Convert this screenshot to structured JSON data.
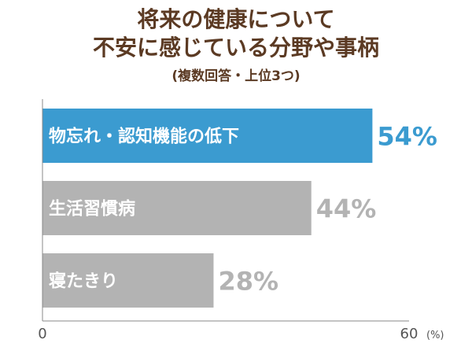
{
  "title_lines": [
    "将来の健康について",
    "不安に感じている分野や事柄"
  ],
  "subtitle": "(複数回答・上位3つ)",
  "chart_data": {
    "type": "bar",
    "orientation": "horizontal",
    "categories": [
      "物忘れ・認知機能の低下",
      "生活習慣病",
      "寝たきり"
    ],
    "values": [
      54,
      44,
      28
    ],
    "value_labels": [
      "54%",
      "44%",
      "28%"
    ],
    "xlim": [
      0,
      60
    ],
    "tick_labels": [
      "0",
      "60"
    ],
    "unit_label": "(%)",
    "colors": {
      "highlight_bar": "#3b9bd0",
      "bar": "#b3b3b3",
      "highlight_value": "#3b9bd0",
      "value": "#b3b3b3",
      "title": "#5b3a23"
    }
  }
}
